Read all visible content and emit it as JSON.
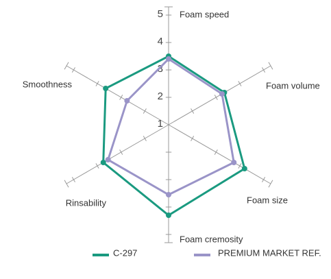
{
  "chart_data": {
    "type": "radar",
    "categories": [
      "Foam speed",
      "Foam volume",
      "Foam size",
      "Foam cremosity",
      "Rinsability",
      "Smoothness"
    ],
    "series": [
      {
        "name": "C-297",
        "color": "#1a9a80",
        "values": [
          3.5,
          3.35,
          4.2,
          4.3,
          3.75,
          3.65
        ]
      },
      {
        "name": "PREMIUM MARKET REF.",
        "color": "#9a94c8",
        "values": [
          3.4,
          3.25,
          3.75,
          3.55,
          3.55,
          2.75
        ]
      }
    ],
    "rlim": [
      1,
      5
    ],
    "rticks": [
      1,
      2,
      3,
      4,
      5
    ]
  }
}
